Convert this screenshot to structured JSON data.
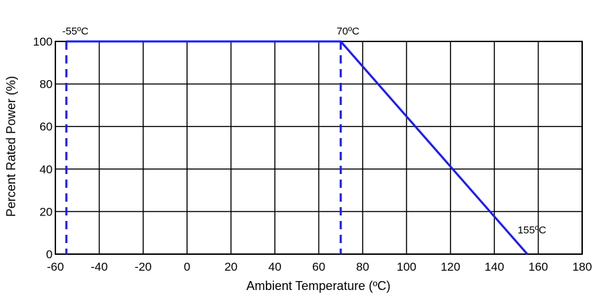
{
  "chart_data": {
    "type": "line",
    "xlabel": "Ambient Temperature (ºC)",
    "ylabel": "Percent Rated Power (%)",
    "xlim": [
      -60,
      180
    ],
    "ylim": [
      0,
      100
    ],
    "x_ticks": [
      -60,
      -40,
      -20,
      0,
      20,
      40,
      60,
      80,
      100,
      120,
      140,
      160,
      180
    ],
    "x_tick_labels": [
      "-60",
      "-40",
      "-20",
      "0",
      "20",
      "40",
      "60",
      "80",
      "100",
      "120",
      "140",
      "160",
      "180"
    ],
    "y_ticks": [
      0,
      20,
      40,
      60,
      80,
      100
    ],
    "y_tick_labels": [
      "0",
      "20",
      "40",
      "60",
      "80",
      "100"
    ],
    "grid": true,
    "series": [
      {
        "x": [
          -55,
          70,
          155
        ],
        "y": [
          100,
          100,
          0
        ],
        "color": "#1a1aff"
      }
    ],
    "reference_lines": [
      {
        "x": -55,
        "label": "-55ºC",
        "style": "dashed",
        "color": "#1a1aff"
      },
      {
        "x": 70,
        "label": "70ºC",
        "style": "dashed",
        "color": "#1a1aff"
      }
    ],
    "annotations": [
      {
        "text": "155ºC",
        "x": 155,
        "y": 0
      }
    ]
  }
}
